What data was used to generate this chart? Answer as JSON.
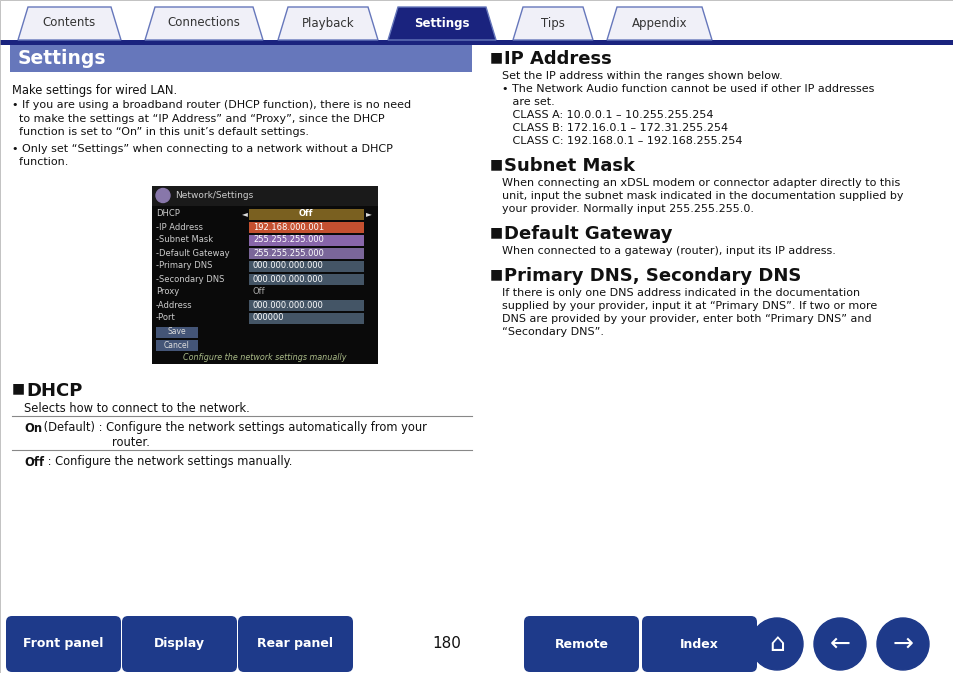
{
  "page_bg": "#ffffff",
  "divider_color": "#1a237e",
  "tabs": [
    "Contents",
    "Connections",
    "Playback",
    "Settings",
    "Tips",
    "Appendix"
  ],
  "active_tab": "Settings",
  "active_tab_bg": "#1a237e",
  "active_tab_fg": "#ffffff",
  "inactive_tab_fg": "#333333",
  "tab_border_color": "#6677bb",
  "settings_header_bg": "#6677bb",
  "settings_header_text": "Settings",
  "settings_header_fg": "#ffffff",
  "body_text_color": "#111111",
  "page_number": "180",
  "bottom_buttons": [
    "Front panel",
    "Display",
    "Rear panel",
    "Remote",
    "Index"
  ],
  "bottom_btn_bg": "#1e3a8a",
  "bottom_btn_fg": "#ffffff"
}
